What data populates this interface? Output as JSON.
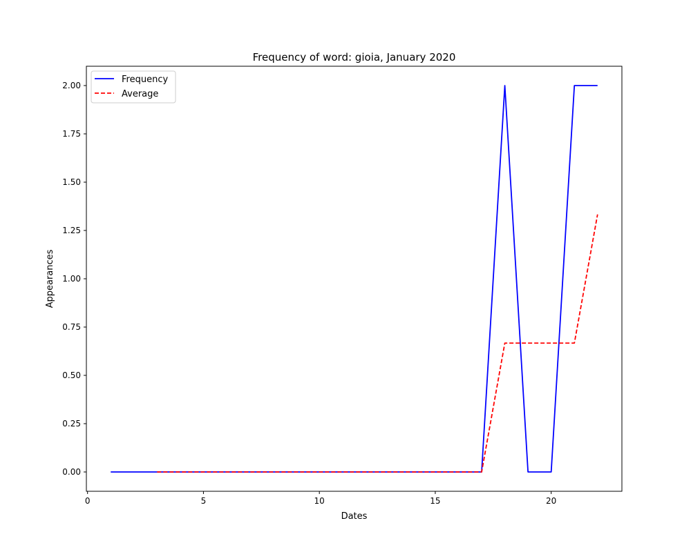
{
  "chart_data": {
    "type": "line",
    "title": "Frequency of word: gioia, January 2020",
    "xlabel": "Dates",
    "ylabel": "Appearances",
    "xlim": [
      -0.05,
      23.05
    ],
    "ylim": [
      -0.1,
      2.1
    ],
    "xticks": [
      0,
      5,
      10,
      15,
      20
    ],
    "yticks": [
      0.0,
      0.25,
      0.5,
      0.75,
      1.0,
      1.25,
      1.5,
      1.75,
      2.0
    ],
    "grid": false,
    "legend_position": "top-left",
    "series": [
      {
        "name": "Frequency",
        "color": "#0000ff",
        "style": "solid",
        "x": [
          1,
          2,
          3,
          4,
          5,
          6,
          7,
          8,
          9,
          10,
          11,
          12,
          13,
          14,
          15,
          16,
          17,
          18,
          19,
          20,
          21,
          22
        ],
        "values": [
          0,
          0,
          0,
          0,
          0,
          0,
          0,
          0,
          0,
          0,
          0,
          0,
          0,
          0,
          0,
          0,
          0,
          2,
          0,
          0,
          2,
          2
        ]
      },
      {
        "name": "Average",
        "color": "#ff0000",
        "style": "dashed",
        "x": [
          3,
          4,
          5,
          6,
          7,
          8,
          9,
          10,
          11,
          12,
          13,
          14,
          15,
          16,
          17,
          18,
          19,
          20,
          21,
          22
        ],
        "values": [
          0,
          0,
          0,
          0,
          0,
          0,
          0,
          0,
          0,
          0,
          0,
          0,
          0,
          0,
          0,
          0.667,
          0.667,
          0.667,
          0.667,
          1.333
        ]
      }
    ]
  }
}
